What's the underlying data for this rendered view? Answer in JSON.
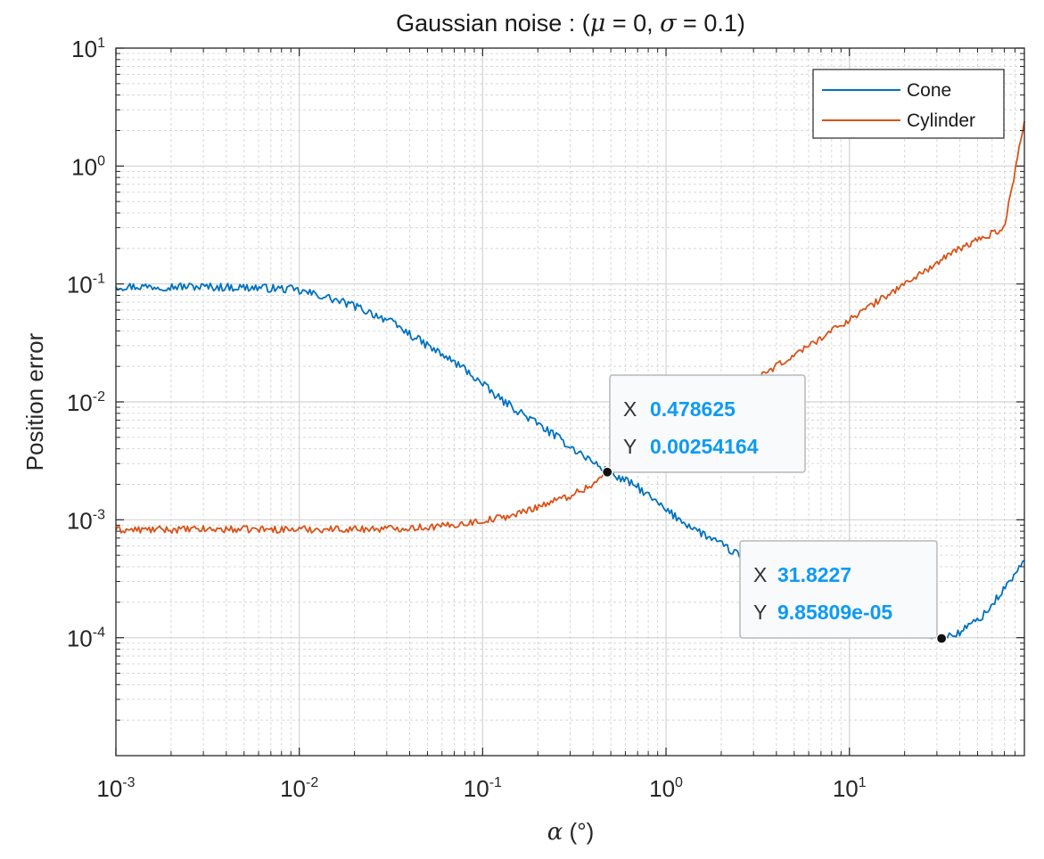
{
  "chart_data": {
    "type": "line",
    "title": "Gaussian noise : (μ = 0, σ = 0.1)",
    "title_parts": {
      "prefix": "Gaussian noise : (",
      "mu": "μ",
      "mid": " = 0, ",
      "sigma": "σ",
      "suffix": " = 0.1)"
    },
    "xlabel": "α (°)",
    "xlabel_parts": {
      "symbol": "α",
      "unit": " (°)"
    },
    "ylabel": "Position error",
    "x_scale": "log",
    "y_scale": "log",
    "xlim": [
      0.001,
      90
    ],
    "ylim": [
      1e-05,
      10
    ],
    "x_ticks": [
      {
        "base": "10",
        "exp": "-3",
        "value": 0.001
      },
      {
        "base": "10",
        "exp": "-2",
        "value": 0.01
      },
      {
        "base": "10",
        "exp": "-1",
        "value": 0.1
      },
      {
        "base": "10",
        "exp": "0",
        "value": 1
      },
      {
        "base": "10",
        "exp": "1",
        "value": 10
      }
    ],
    "y_ticks": [
      {
        "base": "10",
        "exp": "1",
        "value": 10
      },
      {
        "base": "10",
        "exp": "0",
        "value": 1
      },
      {
        "base": "10",
        "exp": "-1",
        "value": 0.1
      },
      {
        "base": "10",
        "exp": "-2",
        "value": 0.01
      },
      {
        "base": "10",
        "exp": "-3",
        "value": 0.001
      },
      {
        "base": "10",
        "exp": "-4",
        "value": 0.0001
      }
    ],
    "grid": true,
    "minor_grid": true,
    "legend_position": "top-right",
    "series": [
      {
        "name": "Cone",
        "color": "#0072BD",
        "noise": 0.035,
        "points": [
          [
            0.001,
            0.095
          ],
          [
            0.0025,
            0.095
          ],
          [
            0.006,
            0.093
          ],
          [
            0.009,
            0.09
          ],
          [
            0.013,
            0.08
          ],
          [
            0.02,
            0.065
          ],
          [
            0.03,
            0.05
          ],
          [
            0.05,
            0.03
          ],
          [
            0.08,
            0.019
          ],
          [
            0.12,
            0.011
          ],
          [
            0.2,
            0.0065
          ],
          [
            0.3,
            0.0042
          ],
          [
            0.478625,
            0.00254164
          ],
          [
            0.7,
            0.0019
          ],
          [
            1.0,
            0.0012
          ],
          [
            1.5,
            0.0008
          ],
          [
            2.5,
            0.0005
          ],
          [
            4.0,
            0.00037
          ],
          [
            8.0,
            0.00025
          ],
          [
            15.0,
            0.00016
          ],
          [
            25.0,
            0.00011
          ],
          [
            31.8227,
            9.85809e-05
          ],
          [
            40.0,
            0.00011
          ],
          [
            55.0,
            0.00016
          ],
          [
            70.0,
            0.00026
          ],
          [
            90.0,
            0.00045
          ]
        ]
      },
      {
        "name": "Cylinder",
        "color": "#D95319",
        "noise": 0.03,
        "points": [
          [
            0.001,
            0.00082
          ],
          [
            0.003,
            0.00083
          ],
          [
            0.01,
            0.00083
          ],
          [
            0.03,
            0.00084
          ],
          [
            0.06,
            0.00088
          ],
          [
            0.1,
            0.00098
          ],
          [
            0.15,
            0.0011
          ],
          [
            0.2,
            0.0013
          ],
          [
            0.3,
            0.0016
          ],
          [
            0.4,
            0.002
          ],
          [
            0.478625,
            0.00254164
          ],
          [
            0.7,
            0.0035
          ],
          [
            1.0,
            0.0055
          ],
          [
            2.0,
            0.01
          ],
          [
            3.0,
            0.015
          ],
          [
            5.0,
            0.025
          ],
          [
            10.0,
            0.05
          ],
          [
            20.0,
            0.1
          ],
          [
            40.0,
            0.2
          ],
          [
            70.0,
            0.3
          ],
          [
            90.0,
            2.4
          ]
        ]
      }
    ],
    "datatips": [
      {
        "x_label": "X",
        "y_label": "Y",
        "x_value": "0.478625",
        "y_value": "0.00254164",
        "x": 0.478625,
        "y": 0.00254164,
        "value_color": "#0E9AF5"
      },
      {
        "x_label": "X",
        "y_label": "Y",
        "x_value": "31.8227",
        "y_value": "9.85809e-05",
        "x": 31.8227,
        "y": 9.85809e-05,
        "value_color": "#0E9AF5"
      }
    ]
  }
}
